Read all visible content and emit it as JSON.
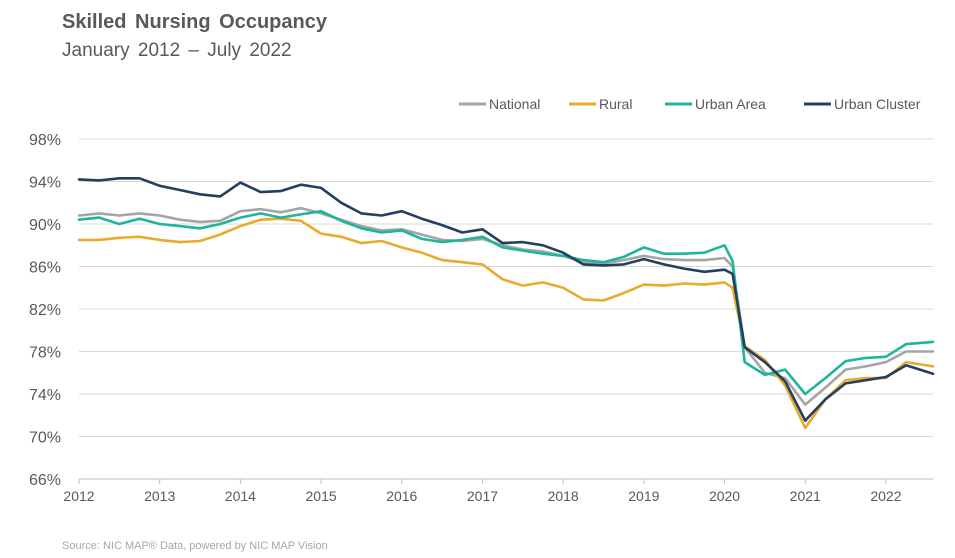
{
  "chart_data": {
    "type": "line",
    "title": "Skilled Nursing Occupancy",
    "subtitle": "January 2012 – July 2022",
    "ylim": [
      66,
      98
    ],
    "y_ticks": [
      "98%",
      "94%",
      "90%",
      "86%",
      "82%",
      "78%",
      "74%",
      "70%",
      "66%"
    ],
    "y_tick_values": [
      98,
      94,
      90,
      86,
      82,
      78,
      74,
      70,
      66
    ],
    "x_ticks": [
      "2012",
      "2013",
      "2014",
      "2015",
      "2016",
      "2017",
      "2018",
      "2019",
      "2020",
      "2021",
      "2022"
    ],
    "x_tick_values": [
      2012,
      2013,
      2014,
      2015,
      2016,
      2017,
      2018,
      2019,
      2020,
      2021,
      2022
    ],
    "xlim": [
      2012.0,
      2022.5833
    ],
    "grid": true,
    "legend_position": "top-right",
    "series": [
      {
        "name": "National",
        "color": "#a5a5a5",
        "points": [
          [
            2012.0,
            90.8
          ],
          [
            2012.25,
            91.0
          ],
          [
            2012.5,
            90.8
          ],
          [
            2012.75,
            91.0
          ],
          [
            2013.0,
            90.8
          ],
          [
            2013.25,
            90.4
          ],
          [
            2013.5,
            90.2
          ],
          [
            2013.75,
            90.3
          ],
          [
            2014.0,
            91.2
          ],
          [
            2014.25,
            91.4
          ],
          [
            2014.5,
            91.1
          ],
          [
            2014.75,
            91.5
          ],
          [
            2015.0,
            91.0
          ],
          [
            2015.25,
            90.4
          ],
          [
            2015.5,
            89.8
          ],
          [
            2015.75,
            89.4
          ],
          [
            2016.0,
            89.5
          ],
          [
            2016.25,
            89.0
          ],
          [
            2016.5,
            88.5
          ],
          [
            2016.75,
            88.4
          ],
          [
            2017.0,
            88.6
          ],
          [
            2017.25,
            88.0
          ],
          [
            2017.5,
            87.6
          ],
          [
            2017.75,
            87.4
          ],
          [
            2018.0,
            87.0
          ],
          [
            2018.25,
            86.4
          ],
          [
            2018.5,
            86.3
          ],
          [
            2018.75,
            86.6
          ],
          [
            2019.0,
            87.0
          ],
          [
            2019.25,
            86.7
          ],
          [
            2019.5,
            86.6
          ],
          [
            2019.75,
            86.6
          ],
          [
            2020.0,
            86.8
          ],
          [
            2020.1,
            86.0
          ],
          [
            2020.25,
            78.4
          ],
          [
            2020.5,
            76.0
          ],
          [
            2020.75,
            75.5
          ],
          [
            2021.0,
            73.0
          ],
          [
            2021.25,
            74.6
          ],
          [
            2021.5,
            76.3
          ],
          [
            2021.75,
            76.6
          ],
          [
            2022.0,
            77.0
          ],
          [
            2022.25,
            78.0
          ],
          [
            2022.5833,
            78.0
          ]
        ]
      },
      {
        "name": "Rural",
        "color": "#e8ac2c",
        "points": [
          [
            2012.0,
            88.5
          ],
          [
            2012.25,
            88.5
          ],
          [
            2012.5,
            88.7
          ],
          [
            2012.75,
            88.8
          ],
          [
            2013.0,
            88.5
          ],
          [
            2013.25,
            88.3
          ],
          [
            2013.5,
            88.4
          ],
          [
            2013.75,
            89.0
          ],
          [
            2014.0,
            89.8
          ],
          [
            2014.25,
            90.4
          ],
          [
            2014.5,
            90.5
          ],
          [
            2014.75,
            90.3
          ],
          [
            2015.0,
            89.1
          ],
          [
            2015.25,
            88.8
          ],
          [
            2015.5,
            88.2
          ],
          [
            2015.75,
            88.4
          ],
          [
            2016.0,
            87.8
          ],
          [
            2016.25,
            87.3
          ],
          [
            2016.5,
            86.6
          ],
          [
            2016.75,
            86.4
          ],
          [
            2017.0,
            86.2
          ],
          [
            2017.25,
            84.8
          ],
          [
            2017.5,
            84.2
          ],
          [
            2017.75,
            84.5
          ],
          [
            2018.0,
            84.0
          ],
          [
            2018.25,
            82.9
          ],
          [
            2018.5,
            82.8
          ],
          [
            2018.75,
            83.5
          ],
          [
            2019.0,
            84.3
          ],
          [
            2019.25,
            84.2
          ],
          [
            2019.5,
            84.4
          ],
          [
            2019.75,
            84.3
          ],
          [
            2020.0,
            84.5
          ],
          [
            2020.1,
            84.0
          ],
          [
            2020.25,
            78.5
          ],
          [
            2020.5,
            77.2
          ],
          [
            2020.75,
            74.8
          ],
          [
            2021.0,
            70.8
          ],
          [
            2021.25,
            73.5
          ],
          [
            2021.5,
            75.3
          ],
          [
            2021.75,
            75.5
          ],
          [
            2022.0,
            75.5
          ],
          [
            2022.25,
            77.0
          ],
          [
            2022.5833,
            76.6
          ]
        ]
      },
      {
        "name": "Urban Area",
        "color": "#1fb59b",
        "points": [
          [
            2012.0,
            90.4
          ],
          [
            2012.25,
            90.6
          ],
          [
            2012.5,
            90.0
          ],
          [
            2012.75,
            90.5
          ],
          [
            2013.0,
            90.0
          ],
          [
            2013.25,
            89.8
          ],
          [
            2013.5,
            89.6
          ],
          [
            2013.75,
            90.0
          ],
          [
            2014.0,
            90.6
          ],
          [
            2014.25,
            91.0
          ],
          [
            2014.5,
            90.6
          ],
          [
            2014.75,
            90.9
          ],
          [
            2015.0,
            91.2
          ],
          [
            2015.25,
            90.3
          ],
          [
            2015.5,
            89.6
          ],
          [
            2015.75,
            89.2
          ],
          [
            2016.0,
            89.4
          ],
          [
            2016.25,
            88.6
          ],
          [
            2016.5,
            88.3
          ],
          [
            2016.75,
            88.5
          ],
          [
            2017.0,
            88.8
          ],
          [
            2017.25,
            87.8
          ],
          [
            2017.5,
            87.5
          ],
          [
            2017.75,
            87.2
          ],
          [
            2018.0,
            87.0
          ],
          [
            2018.25,
            86.6
          ],
          [
            2018.5,
            86.4
          ],
          [
            2018.75,
            86.9
          ],
          [
            2019.0,
            87.8
          ],
          [
            2019.25,
            87.2
          ],
          [
            2019.5,
            87.2
          ],
          [
            2019.75,
            87.3
          ],
          [
            2020.0,
            88.0
          ],
          [
            2020.1,
            86.5
          ],
          [
            2020.25,
            77.0
          ],
          [
            2020.5,
            75.8
          ],
          [
            2020.75,
            76.3
          ],
          [
            2021.0,
            74.0
          ],
          [
            2021.25,
            75.5
          ],
          [
            2021.5,
            77.1
          ],
          [
            2021.75,
            77.4
          ],
          [
            2022.0,
            77.5
          ],
          [
            2022.25,
            78.7
          ],
          [
            2022.5833,
            78.9
          ]
        ]
      },
      {
        "name": "Urban Cluster",
        "color": "#243f60",
        "points": [
          [
            2012.0,
            94.2
          ],
          [
            2012.25,
            94.1
          ],
          [
            2012.5,
            94.3
          ],
          [
            2012.75,
            94.3
          ],
          [
            2013.0,
            93.6
          ],
          [
            2013.25,
            93.2
          ],
          [
            2013.5,
            92.8
          ],
          [
            2013.75,
            92.6
          ],
          [
            2014.0,
            93.9
          ],
          [
            2014.25,
            93.0
          ],
          [
            2014.5,
            93.1
          ],
          [
            2014.75,
            93.7
          ],
          [
            2015.0,
            93.4
          ],
          [
            2015.25,
            92.0
          ],
          [
            2015.5,
            91.0
          ],
          [
            2015.75,
            90.8
          ],
          [
            2016.0,
            91.2
          ],
          [
            2016.25,
            90.5
          ],
          [
            2016.5,
            89.9
          ],
          [
            2016.75,
            89.2
          ],
          [
            2017.0,
            89.5
          ],
          [
            2017.25,
            88.2
          ],
          [
            2017.5,
            88.3
          ],
          [
            2017.75,
            88.0
          ],
          [
            2018.0,
            87.3
          ],
          [
            2018.25,
            86.2
          ],
          [
            2018.5,
            86.1
          ],
          [
            2018.75,
            86.2
          ],
          [
            2019.0,
            86.7
          ],
          [
            2019.25,
            86.2
          ],
          [
            2019.5,
            85.8
          ],
          [
            2019.75,
            85.5
          ],
          [
            2020.0,
            85.7
          ],
          [
            2020.1,
            85.3
          ],
          [
            2020.25,
            78.4
          ],
          [
            2020.5,
            77.0
          ],
          [
            2020.75,
            75.2
          ],
          [
            2021.0,
            71.5
          ],
          [
            2021.25,
            73.5
          ],
          [
            2021.5,
            75.0
          ],
          [
            2021.75,
            75.3
          ],
          [
            2022.0,
            75.6
          ],
          [
            2022.25,
            76.7
          ],
          [
            2022.5833,
            75.9
          ]
        ]
      }
    ]
  },
  "source": "Source: NIC MAP® Data, powered by NIC MAP Vision"
}
